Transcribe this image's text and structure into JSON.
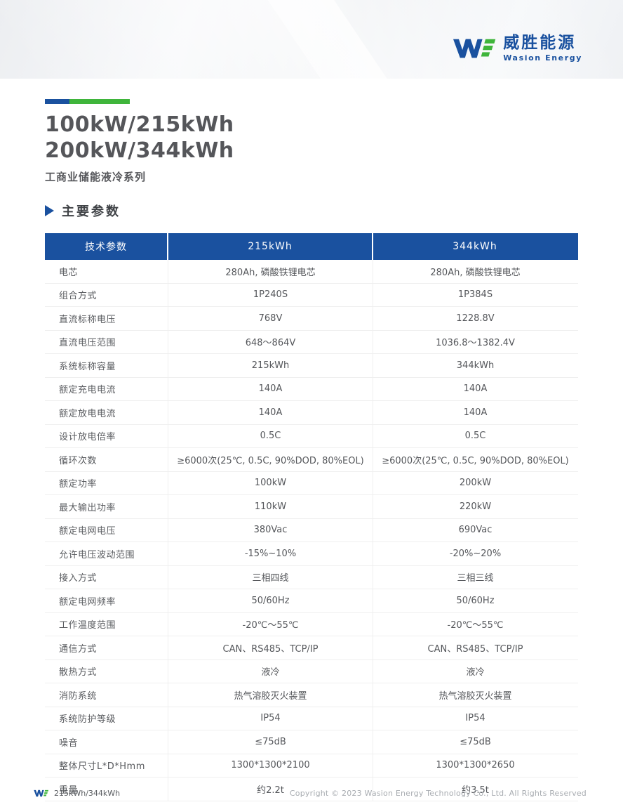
{
  "brand": {
    "name_cn": "威胜能源",
    "name_en": "Wasion Energy",
    "colors": {
      "blue": "#1a519f",
      "green": "#3fb53b"
    }
  },
  "header": {
    "title_line1": "100kW/215kWh",
    "title_line2": "200kW/344kWh",
    "subtitle": "工商业储能液冷系列",
    "section_title": "主要参数",
    "section_marker_icon": "triangle-right"
  },
  "table": {
    "columns": [
      "技术参数",
      "215kWh",
      "344kWh"
    ],
    "rows": [
      {
        "label": "电芯",
        "col1": "280Ah, 磷酸铁锂电芯",
        "col2": "280Ah, 磷酸铁锂电芯"
      },
      {
        "label": "组合方式",
        "col1": "1P240S",
        "col2": "1P384S"
      },
      {
        "label": "直流标称电压",
        "col1": "768V",
        "col2": "1228.8V"
      },
      {
        "label": "直流电压范围",
        "col1": "648～864V",
        "col2": "1036.8～1382.4V"
      },
      {
        "label": "系统标称容量",
        "col1": "215kWh",
        "col2": "344kWh"
      },
      {
        "label": "额定充电电流",
        "col1": "140A",
        "col2": "140A"
      },
      {
        "label": "额定放电电流",
        "col1": "140A",
        "col2": "140A"
      },
      {
        "label": "设计放电倍率",
        "col1": "0.5C",
        "col2": "0.5C"
      },
      {
        "label": "循环次数",
        "col1": "≥6000次(25℃, 0.5C, 90%DOD, 80%EOL)",
        "col2": "≥6000次(25℃, 0.5C, 90%DOD, 80%EOL)"
      },
      {
        "label": "额定功率",
        "col1": "100kW",
        "col2": "200kW"
      },
      {
        "label": "最大输出功率",
        "col1": "110kW",
        "col2": "220kW"
      },
      {
        "label": "额定电网电压",
        "col1": "380Vac",
        "col2": "690Vac"
      },
      {
        "label": "允许电压波动范围",
        "col1": "-15%~10%",
        "col2": "-20%~20%"
      },
      {
        "label": "接入方式",
        "col1": "三相四线",
        "col2": "三相三线"
      },
      {
        "label": "额定电网频率",
        "col1": "50/60Hz",
        "col2": "50/60Hz"
      },
      {
        "label": "工作温度范围",
        "col1": "-20℃～55℃",
        "col2": "-20℃～55℃"
      },
      {
        "label": "通信方式",
        "col1": "CAN、RS485、TCP/IP",
        "col2": "CAN、RS485、TCP/IP"
      },
      {
        "label": "散热方式",
        "col1": "液冷",
        "col2": "液冷"
      },
      {
        "label": "消防系统",
        "col1": "热气溶胶灭火装置",
        "col2": "热气溶胶灭火装置"
      },
      {
        "label": "系统防护等级",
        "col1": "IP54",
        "col2": "IP54"
      },
      {
        "label": "噪音",
        "col1": "≤75dB",
        "col2": "≤75dB"
      },
      {
        "label": "整体尺寸L*D*Hmm",
        "col1": "1300*1300*2100",
        "col2": "1300*1300*2650"
      },
      {
        "label": "重量",
        "col1": "约2.2t",
        "col2": "约3.5t"
      }
    ]
  },
  "footer": {
    "model": "215kWh/344kWh",
    "copyright": "Copyright © 2023 Wasion Energy Technology Co., Ltd. All Rights Reserved"
  }
}
